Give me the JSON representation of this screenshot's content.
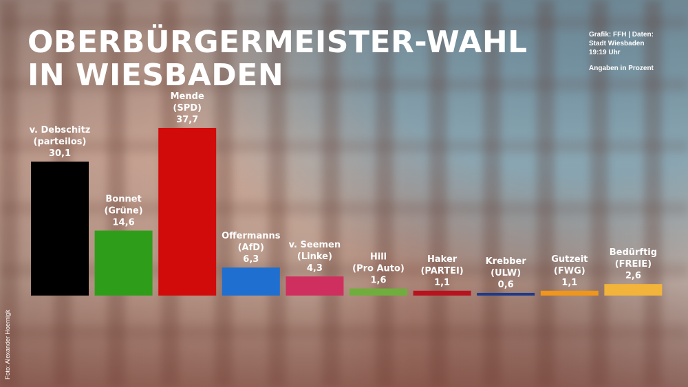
{
  "title_lines": [
    "OBERBÜRGERMEISTER-WAHL",
    "IN WIESBADEN"
  ],
  "meta": {
    "line1": "Grafik: FFH | Daten:",
    "line2": "Stadt Wiesbaden",
    "line3": "19:19 Uhr",
    "line4": "Angaben in Prozent"
  },
  "photo_credit": "Foto: Alexander Hoernigk",
  "chart_data": {
    "type": "bar",
    "ylim": [
      0,
      37.7
    ],
    "grid": false,
    "categories": [
      {
        "name": "v. Debschitz",
        "party": "(parteilos)",
        "value_label": "30,1"
      },
      {
        "name": "Bonnet",
        "party": "(Grüne)",
        "value_label": "14,6"
      },
      {
        "name": "Mende",
        "party": "(SPD)",
        "value_label": "37,7"
      },
      {
        "name": "Offermanns",
        "party": "(AfD)",
        "value_label": "6,3"
      },
      {
        "name": "v. Seemen",
        "party": "(Linke)",
        "value_label": "4,3"
      },
      {
        "name": "Hill",
        "party": "(Pro Auto)",
        "value_label": "1,6"
      },
      {
        "name": "Haker",
        "party": "(PARTEI)",
        "value_label": "1,1"
      },
      {
        "name": "Krebber",
        "party": "(ULW)",
        "value_label": "0,6"
      },
      {
        "name": "Gutzeit",
        "party": "(FWG)",
        "value_label": "1,1"
      },
      {
        "name": "Bedürftig",
        "party": "(FREIE)",
        "value_label": "2,6"
      }
    ],
    "values": [
      30.1,
      14.6,
      37.7,
      6.3,
      4.3,
      1.6,
      1.1,
      0.6,
      1.1,
      2.6
    ],
    "colors": [
      "#000000",
      "#2e9e1a",
      "#d10a0a",
      "#1f6fd1",
      "#cf2f5e",
      "#6fae3c",
      "#b8121f",
      "#1b3a8c",
      "#f0961a",
      "#f2b43a"
    ]
  }
}
